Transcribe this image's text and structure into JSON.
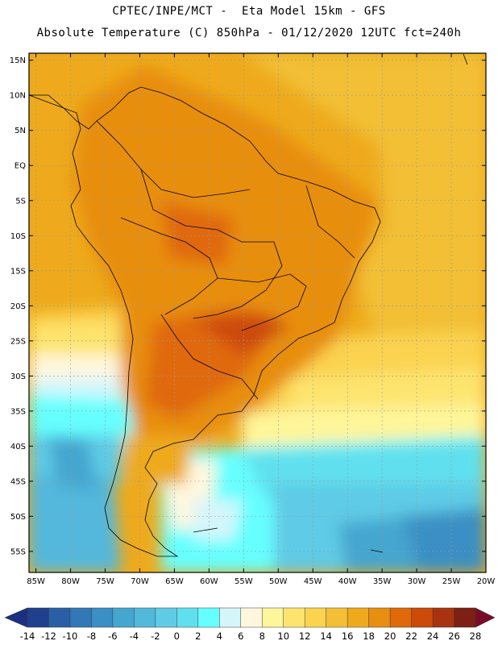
{
  "header": {
    "line1": "CPTEC/INPE/MCT -  Eta Model 15km - GFS",
    "line2": "Absolute Temperature (C) 850hPa - 01/12/2020 12UTC fct=240h"
  },
  "map": {
    "lat_labels": [
      "15N",
      "10N",
      "5N",
      "EQ",
      "5S",
      "10S",
      "15S",
      "20S",
      "25S",
      "30S",
      "35S",
      "40S",
      "45S",
      "50S",
      "55S"
    ],
    "lon_labels": [
      "85W",
      "80W",
      "75W",
      "70W",
      "65W",
      "60W",
      "55W",
      "50W",
      "45W",
      "40W",
      "35W",
      "30W",
      "25W",
      "20W"
    ],
    "extent": {
      "lon": [
        -86,
        -20
      ],
      "lat": [
        -58,
        16
      ]
    },
    "grid": true
  },
  "colorbar": {
    "labels": [
      "-14",
      "-12",
      "-10",
      "-8",
      "-6",
      "-4",
      "-2",
      "0",
      "2",
      "4",
      "6",
      "8",
      "10",
      "12",
      "14",
      "16",
      "18",
      "20",
      "22",
      "24",
      "26",
      "28"
    ],
    "colors": [
      "#1f3f8f",
      "#2a5fa5",
      "#3278b7",
      "#3a8fc4",
      "#45a6cf",
      "#52b8dc",
      "#5fcbe6",
      "#60e0ee",
      "#66ffff",
      "#d4f6fb",
      "#fff7dd",
      "#fff59a",
      "#fde46e",
      "#fbd34f",
      "#f2bf36",
      "#eeaa1c",
      "#e88e10",
      "#e0690a",
      "#cc4a0a",
      "#a93210",
      "#7d1f12"
    ],
    "under_color": "#1a3080",
    "over_color": "#7a0a2a"
  }
}
